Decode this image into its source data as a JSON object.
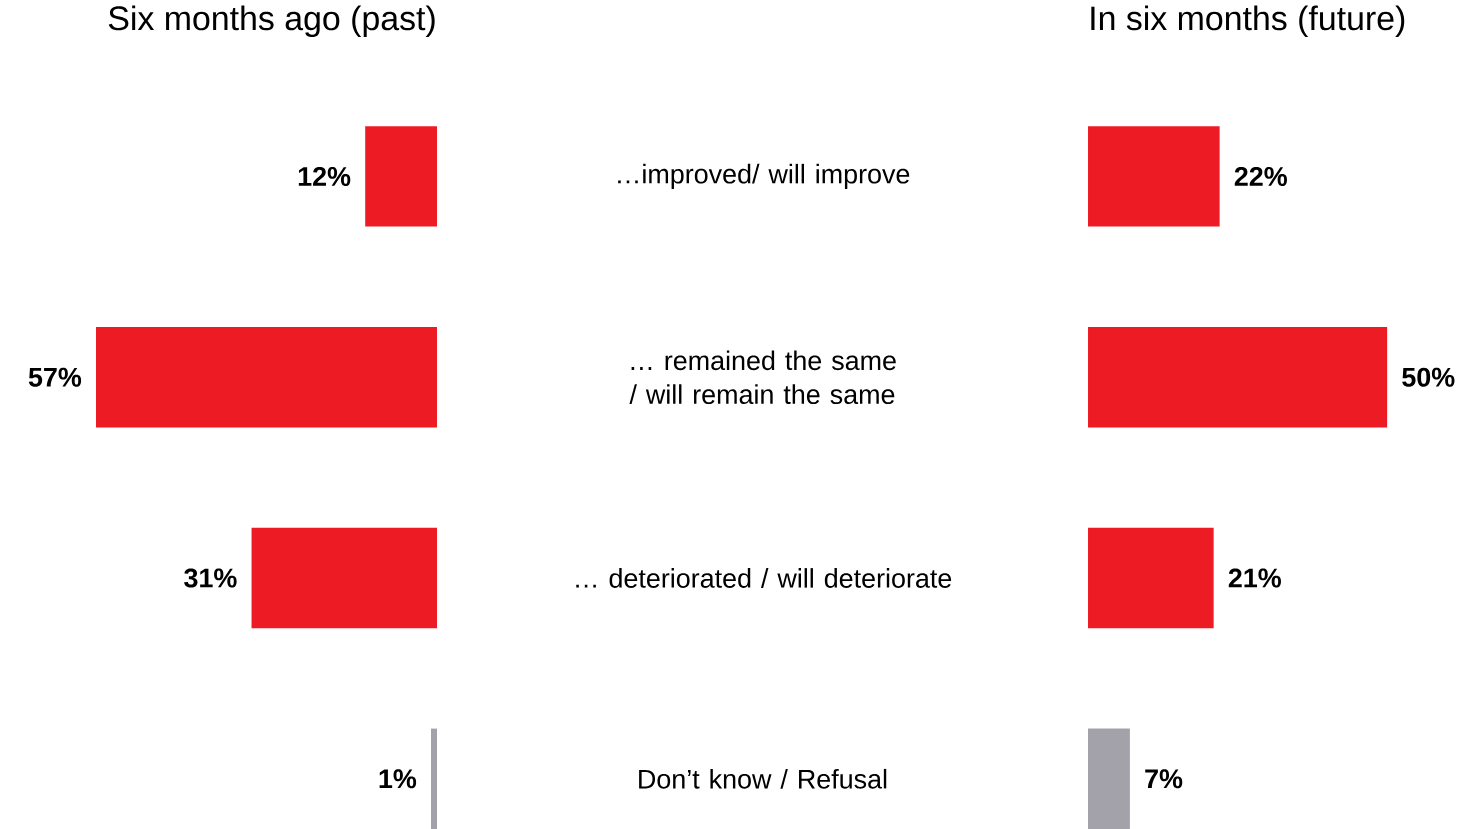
{
  "chart_data": [
    {
      "type": "bar",
      "orientation": "horizontal",
      "title": "Six months ago (past)",
      "categories": [
        "…improved/ will improve",
        "… remained the same / will remain the same",
        "… deteriorated / will deteriorate",
        "Don’t know / Refusal"
      ],
      "values": [
        12,
        57,
        31,
        1
      ],
      "colors": [
        "#ed1c24",
        "#ed1c24",
        "#ed1c24",
        "#a3a2aa"
      ],
      "value_labels": [
        "12%",
        "57%",
        "31%",
        "1%"
      ],
      "tick_labels": "y"
    },
    {
      "type": "bar",
      "orientation": "horizontal",
      "title": "In six months (future)",
      "values": [
        22,
        50,
        21,
        7
      ],
      "colors": [
        "#ed1c24",
        "#ed1c24",
        "#ed1c24",
        "#a3a2aa"
      ],
      "value_labels": [
        "22%",
        "50%",
        "21%",
        "7%"
      ],
      "tick_labels": false
    }
  ]
}
